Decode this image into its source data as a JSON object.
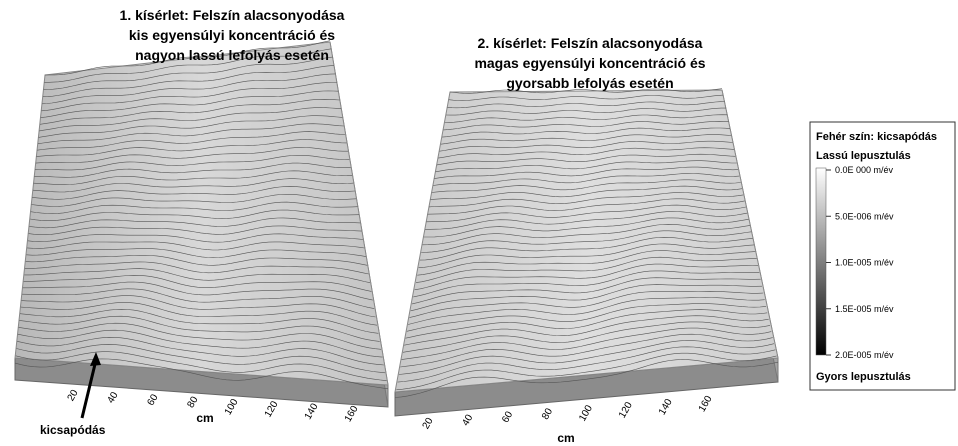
{
  "panels": [
    {
      "title": [
        "1. kísérlet: Felszín alacsonyodása",
        "kis egyensúlyi koncentráció és",
        "nagyon lassú lefolyás esetén"
      ],
      "x_ticks": [
        "20",
        "40",
        "60",
        "80",
        "100",
        "120",
        "140",
        "160"
      ],
      "x_label": "cm",
      "annotation": "kicsapódás"
    },
    {
      "title": [
        "2. kísérlet: Felszín alacsonyodása",
        "magas egyensúlyi koncentráció és",
        "gyorsabb lefolyás esetén"
      ],
      "x_ticks": [
        "20",
        "40",
        "60",
        "80",
        "100",
        "120",
        "140",
        "160"
      ],
      "x_label": "cm"
    }
  ],
  "legend": {
    "title": "Fehér szín: kicsapódás",
    "top_label": "Lassú lepusztulás",
    "ticks": [
      "0.0E 000 m/év",
      "5.0E-006 m/év",
      "1.0E-005 m/év",
      "1.5E-005 m/év",
      "2.0E-005 m/év"
    ],
    "bottom_label": "Gyors lepusztulás"
  }
}
